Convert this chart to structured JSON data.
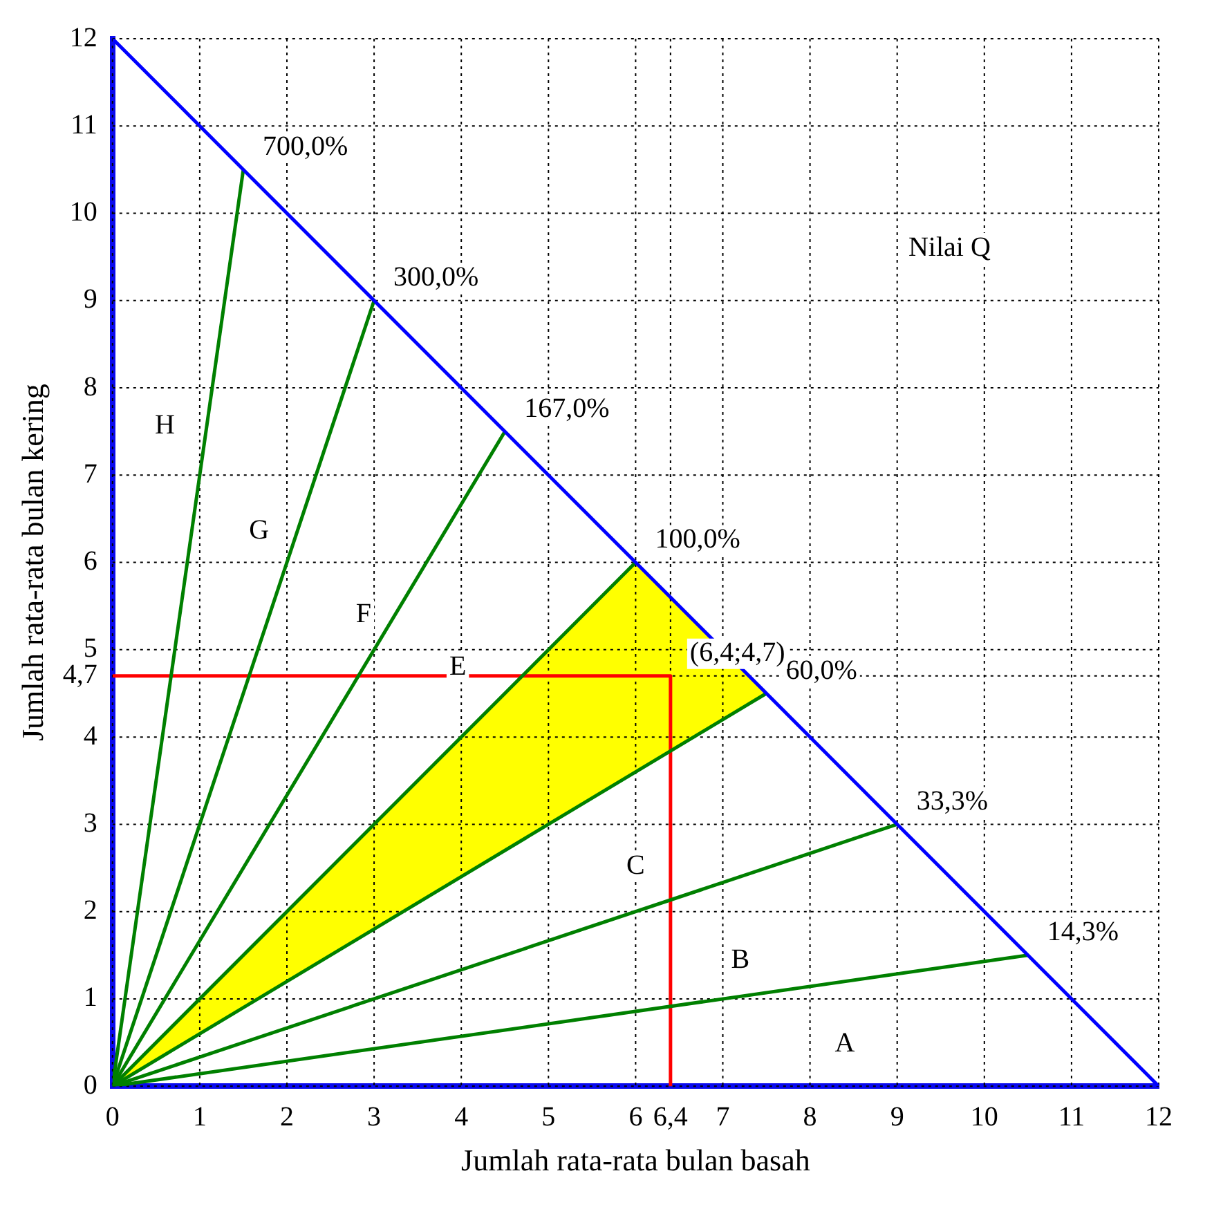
{
  "chart_data": {
    "type": "line",
    "xlabel": "Jumlah rata-rata bulan basah",
    "ylabel": "Jumlah rata-rata bulan kering",
    "xlim": [
      0,
      12
    ],
    "ylim": [
      0,
      12
    ],
    "xticks": [
      0,
      1,
      2,
      3,
      4,
      5,
      6,
      {
        "value": 6.4,
        "label": "6,4"
      },
      7,
      8,
      9,
      10,
      11,
      12
    ],
    "yticks": [
      0,
      1,
      2,
      3,
      4,
      {
        "value": 4.7,
        "label": "4,7"
      },
      5,
      6,
      7,
      8,
      9,
      10,
      11,
      12
    ],
    "grid": true,
    "legend": false,
    "marker": "none",
    "series": [
      {
        "color": "#0000ff",
        "x": [
          0,
          12
        ],
        "values": [
          12,
          0
        ]
      },
      {
        "color": "#008000",
        "x": [
          0,
          1.5
        ],
        "values": [
          0,
          10.5
        ]
      },
      {
        "color": "#008000",
        "x": [
          0,
          3
        ],
        "values": [
          0,
          9
        ]
      },
      {
        "color": "#008000",
        "x": [
          0,
          4.5
        ],
        "values": [
          0,
          7.5
        ]
      },
      {
        "color": "#008000",
        "x": [
          0,
          6
        ],
        "values": [
          0,
          6
        ]
      },
      {
        "color": "#008000",
        "x": [
          0,
          6,
          7.5
        ],
        "values": [
          0,
          3.6,
          4.5
        ],
        "lower": [
          0,
          3.6,
          4.5
        ],
        "upper": [
          0,
          6,
          4.5
        ]
      },
      {
        "color": "#008000",
        "x": [
          0,
          9
        ],
        "values": [
          0,
          3
        ]
      },
      {
        "color": "#008000",
        "x": [
          0,
          10.5
        ],
        "values": [
          0,
          1.5
        ]
      },
      {
        "color": "#ff0000",
        "x": [
          0,
          6.4,
          6.4
        ],
        "values": [
          4.7,
          4.7,
          0
        ]
      }
    ],
    "annotations": [
      {
        "text": "700,0%",
        "x": 1.5,
        "y": 10.5
      },
      {
        "text": "300,0%",
        "x": 3,
        "y": 9
      },
      {
        "text": "167,0%",
        "x": 4.5,
        "y": 7.5
      },
      {
        "text": "100,0%",
        "x": 6,
        "y": 6
      },
      {
        "text": "60,0%",
        "x": 7.5,
        "y": 4.5
      },
      {
        "text": "33,3%",
        "x": 9,
        "y": 3
      },
      {
        "text": "14,3%",
        "x": 10.5,
        "y": 1.5
      },
      {
        "text": "(6,4;4,7)",
        "x": 6.4,
        "y": 4.7
      },
      "H",
      "G",
      "F",
      "E",
      "C",
      "B",
      "A",
      "Nilai Q"
    ]
  }
}
